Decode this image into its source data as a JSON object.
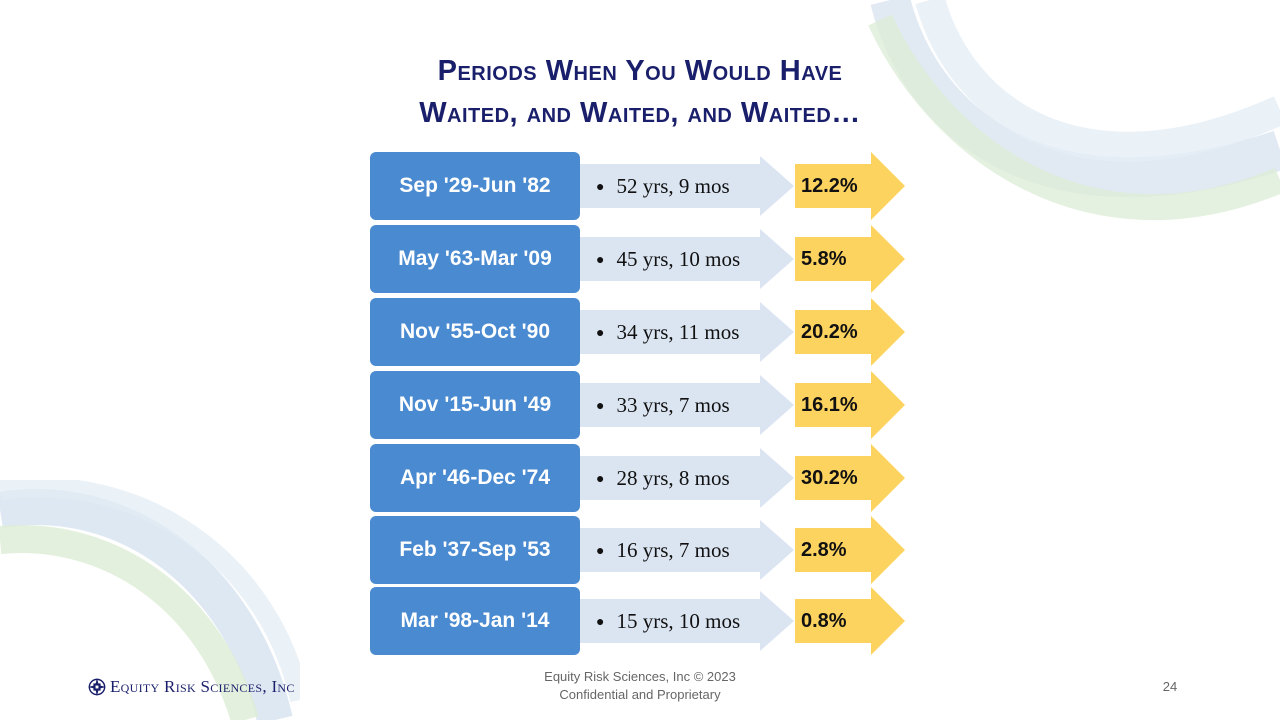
{
  "slide": {
    "title_line1": "Periods When You Would Have",
    "title_line2": "Waited, and Waited, and Waited…",
    "rows": [
      {
        "period": "Sep '29-Jun '82",
        "duration": "52 yrs, 9 mos",
        "return": "12.2%"
      },
      {
        "period": "May '63-Mar '09",
        "duration": "45 yrs, 10 mos",
        "return": "5.8%"
      },
      {
        "period": "Nov '55-Oct '90",
        "duration": "34 yrs, 11 mos",
        "return": "20.2%"
      },
      {
        "period": "Nov '15-Jun '49",
        "duration": "33 yrs, 7 mos",
        "return": "16.1%"
      },
      {
        "period": "Apr '46-Dec '74",
        "duration": "28 yrs, 8 mos",
        "return": "30.2%"
      },
      {
        "period": "Feb '37-Sep '53",
        "duration": "16 yrs, 7 mos",
        "return": "2.8%"
      },
      {
        "period": "Mar '98-Jan '14",
        "duration": "15 yrs, 10 mos",
        "return": "0.8%"
      }
    ]
  },
  "footer": {
    "company_logo_text": "Equity Risk Sciences, Inc",
    "copyright": "Equity Risk Sciences, Inc © 2023",
    "confidential": "Confidential and Proprietary",
    "page_number": "24"
  },
  "colors": {
    "title": "#1a1f6b",
    "period_box": "#4a8ad0",
    "duration_arrow": "#dbe5f2",
    "return_arrow": "#fdd35f"
  },
  "icons": {
    "logo": "compass-star-logo-icon",
    "bullet": "bullet-dot"
  }
}
